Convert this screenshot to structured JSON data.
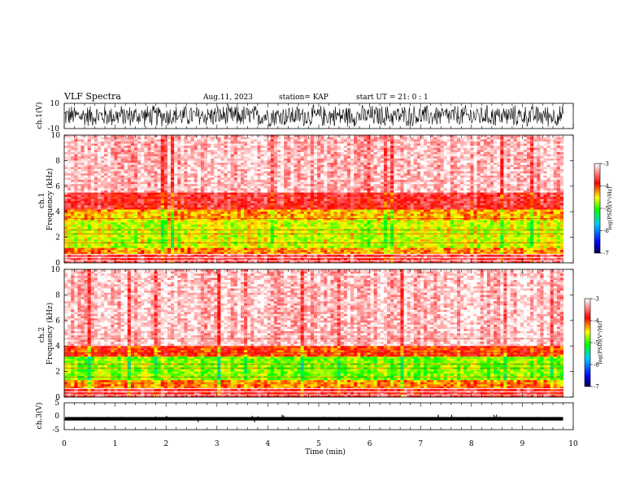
{
  "header": {
    "title": "VLF Spectra",
    "date": "Aug.11, 2023",
    "station": "station= KAP",
    "start": "start  UT =   21: 0  : 1"
  },
  "colors": {
    "colormap": [
      "#00008b",
      "#0000ff",
      "#00ffff",
      "#00ff00",
      "#ffff00",
      "#ff0000",
      "#ffffff"
    ],
    "waveform": "#000000"
  },
  "chart_data": [
    {
      "type": "line",
      "panel": "ch1-waveform",
      "ylabel": "ch.1(V)",
      "ylim": [
        -10,
        10
      ],
      "yticks": [
        "10",
        "-10"
      ],
      "xlim": [
        0,
        10
      ],
      "description_of_signal": "noise-like waveform mostly within -10 to 10 V"
    },
    {
      "type": "heatmap",
      "panel": "ch1-spectrogram",
      "ylabel": "ch.1 Frequency (kHz)",
      "ylim": [
        0,
        10
      ],
      "yticks": [
        "0",
        "2",
        "4",
        "6",
        "8",
        "10"
      ],
      "xlim": [
        0,
        9.8
      ],
      "colorbar": {
        "label": "log(PSD)(V²/Hz)",
        "range": [
          -7,
          -3
        ],
        "ticks": [
          "-3",
          "-4",
          "-5",
          "-6",
          "-7"
        ]
      },
      "bands": [
        {
          "f_lo": 0.0,
          "f_hi": 0.7,
          "log_psd": -3.6
        },
        {
          "f_lo": 0.7,
          "f_hi": 1.2,
          "log_psd": -4.2
        },
        {
          "f_lo": 1.2,
          "f_hi": 3.4,
          "log_psd": -4.6
        },
        {
          "f_lo": 3.4,
          "f_hi": 4.2,
          "log_psd": -4.3
        },
        {
          "f_lo": 4.2,
          "f_hi": 5.5,
          "log_psd": -3.7
        },
        {
          "f_lo": 5.5,
          "f_hi": 10.0,
          "log_psd": -3.2
        }
      ]
    },
    {
      "type": "heatmap",
      "panel": "ch2-spectrogram",
      "ylabel": "ch.2 Frequency (kHz)",
      "ylim": [
        0,
        10
      ],
      "yticks": [
        "0",
        "2",
        "4",
        "6",
        "8",
        "10"
      ],
      "xlim": [
        0,
        9.8
      ],
      "colorbar": {
        "label": "log(PSD)(V²/Hz)",
        "range": [
          -7,
          -3
        ],
        "ticks": [
          "-3",
          "-4",
          "-5",
          "-6",
          "-7"
        ]
      },
      "bands": [
        {
          "f_lo": 0.0,
          "f_hi": 0.7,
          "log_psd": -3.7
        },
        {
          "f_lo": 0.7,
          "f_hi": 1.3,
          "log_psd": -4.2
        },
        {
          "f_lo": 1.3,
          "f_hi": 3.1,
          "log_psd": -4.8
        },
        {
          "f_lo": 3.1,
          "f_hi": 4.0,
          "log_psd": -4.0
        },
        {
          "f_lo": 4.0,
          "f_hi": 10.0,
          "log_psd": -3.2
        }
      ]
    },
    {
      "type": "line",
      "panel": "ch3-waveform",
      "ylabel": "ch.3(V)",
      "ylim": [
        -5,
        5
      ],
      "yticks": [
        "5",
        "0",
        "-5"
      ],
      "xlim": [
        0,
        10
      ],
      "description_of_signal": "narrow band near -1 V"
    }
  ],
  "xaxis": {
    "label": "Time (min)",
    "range": [
      0,
      10
    ],
    "ticks": [
      "0",
      "1",
      "2",
      "3",
      "4",
      "5",
      "6",
      "7",
      "8",
      "9",
      "10"
    ]
  }
}
